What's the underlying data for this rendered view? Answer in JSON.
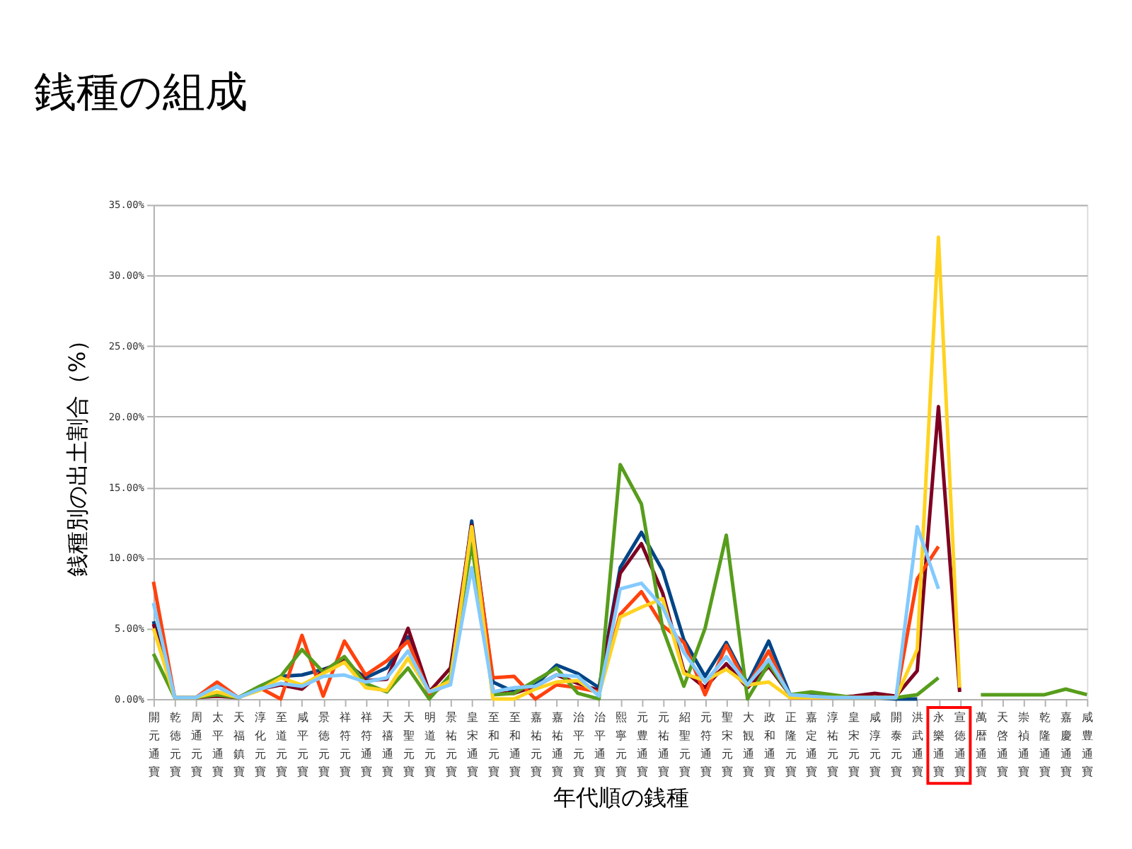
{
  "chart_data": {
    "type": "line",
    "title": "銭種の組成",
    "xlabel": "年代順の銭種",
    "ylabel": "銭種別の出土割合（%）",
    "categories": [
      "開元通寶",
      "乾徳元寶",
      "周通元寶",
      "太平通寶",
      "天福鎮寶",
      "淳化元寶",
      "至道元寶",
      "咸平元寶",
      "景徳元寶",
      "祥符元寶",
      "祥符通寶",
      "天禧通寶",
      "天聖元寶",
      "明道元寶",
      "景祐元寶",
      "皇宋通寶",
      "至和元寶",
      "至和通寶",
      "嘉祐元寶",
      "嘉祐通寶",
      "治平元寶",
      "治平通寶",
      "熙寧元寶",
      "元豊通寶",
      "元祐通寶",
      "紹聖元寶",
      "元符通寶",
      "聖宋元寶",
      "大観通寶",
      "政和通寶",
      "正隆元寶",
      "嘉定通寶",
      "淳祐元寶",
      "皇宋元寶",
      "咸淳元寶",
      "開泰元寶",
      "洪武通寶",
      "永樂通寶",
      "宣徳通寶",
      "萬暦通寶",
      "天啓通寶",
      "崇禎通寶",
      "乾隆通寶",
      "嘉慶通寶",
      "咸豊通寶"
    ],
    "series": [
      {
        "color": "#004586",
        "values": [
          5.5,
          0.1,
          0.1,
          0.9,
          0.1,
          0.8,
          1.6,
          1.7,
          2.1,
          2.6,
          1.5,
          2.2,
          4.4,
          0.5,
          1.2,
          12.6,
          1.2,
          0.5,
          1.0,
          2.4,
          1.8,
          0.8,
          9.3,
          11.8,
          9.1,
          4.2,
          1.6,
          4.0,
          1.1,
          4.1,
          0.3,
          0.3,
          0.1,
          0.1,
          0.1,
          0.0,
          0.0,
          null,
          null,
          null,
          null,
          null,
          null,
          null,
          null
        ]
      },
      {
        "color": "#7e0021",
        "values": [
          5.3,
          0.1,
          0.1,
          0.2,
          0.1,
          0.7,
          1.0,
          0.7,
          2.0,
          2.8,
          1.3,
          1.4,
          5.0,
          0.5,
          2.2,
          12.3,
          0.5,
          0.4,
          0.9,
          1.7,
          1.1,
          0.6,
          8.9,
          11.0,
          7.5,
          2.0,
          0.8,
          2.5,
          0.8,
          2.3,
          0.3,
          0.2,
          0.1,
          0.2,
          0.4,
          0.2,
          2.0,
          20.7,
          0.5,
          null,
          null,
          null,
          null,
          null,
          null
        ]
      },
      {
        "color": "#ff420e",
        "values": [
          8.3,
          0.1,
          0.1,
          1.2,
          0.1,
          0.8,
          0.0,
          4.5,
          0.2,
          4.1,
          1.7,
          2.7,
          4.1,
          0.3,
          1.2,
          12.2,
          1.5,
          1.6,
          0.0,
          1.0,
          0.8,
          0.5,
          6.0,
          7.6,
          5.2,
          4.0,
          0.3,
          3.8,
          0.9,
          3.4,
          0.1,
          0.1,
          0.1,
          0.1,
          0.1,
          0.1,
          8.5,
          10.8,
          null,
          null,
          null,
          null,
          null,
          null,
          null
        ]
      },
      {
        "color": "#579d1c",
        "values": [
          3.2,
          0.1,
          0.1,
          0.3,
          0.1,
          0.9,
          1.6,
          3.5,
          1.9,
          3.0,
          1.1,
          0.5,
          2.2,
          0.0,
          1.7,
          11.0,
          0.3,
          0.4,
          1.3,
          2.2,
          0.4,
          0.0,
          16.6,
          13.8,
          5.0,
          0.9,
          5.0,
          11.6,
          0.0,
          2.5,
          0.3,
          0.5,
          0.3,
          0.1,
          0.1,
          0.1,
          0.3,
          1.5,
          null,
          0.3,
          0.3,
          0.3,
          0.3,
          0.7,
          0.3
        ]
      },
      {
        "color": "#ffd320",
        "values": [
          5.0,
          0.1,
          0.1,
          0.5,
          0.1,
          0.6,
          1.5,
          1.0,
          1.8,
          2.6,
          0.8,
          0.6,
          2.9,
          0.5,
          1.3,
          12.2,
          0.0,
          0.0,
          0.7,
          1.2,
          1.3,
          0.3,
          5.8,
          6.5,
          7.1,
          1.8,
          1.3,
          2.1,
          1.0,
          1.2,
          0.1,
          0.1,
          0.1,
          0.1,
          0.1,
          0.1,
          3.5,
          32.7,
          0.8,
          null,
          null,
          null,
          null,
          null,
          null
        ]
      },
      {
        "color": "#83caff",
        "values": [
          6.8,
          0.1,
          0.1,
          0.9,
          0.1,
          0.7,
          1.1,
          0.9,
          1.6,
          1.7,
          1.2,
          1.5,
          3.4,
          0.5,
          1.0,
          9.3,
          0.5,
          0.8,
          0.9,
          1.7,
          1.6,
          0.2,
          7.8,
          8.2,
          6.5,
          3.3,
          1.2,
          3.0,
          1.0,
          2.8,
          0.3,
          0.2,
          0.1,
          0.1,
          0.1,
          0.1,
          12.2,
          7.8,
          null,
          null,
          null,
          null,
          null,
          null,
          null
        ]
      }
    ],
    "ylim": [
      0,
      35
    ],
    "yticks": [
      {
        "value": 0,
        "label": "0.00%"
      },
      {
        "value": 5,
        "label": "5.00%"
      },
      {
        "value": 10,
        "label": "10.00%"
      },
      {
        "value": 15,
        "label": "15.00%"
      },
      {
        "value": 20,
        "label": "20.00%"
      },
      {
        "value": 25,
        "label": "25.00%"
      },
      {
        "value": 30,
        "label": "30.00%"
      },
      {
        "value": 35,
        "label": "35.00%"
      }
    ],
    "grid": "y"
  }
}
